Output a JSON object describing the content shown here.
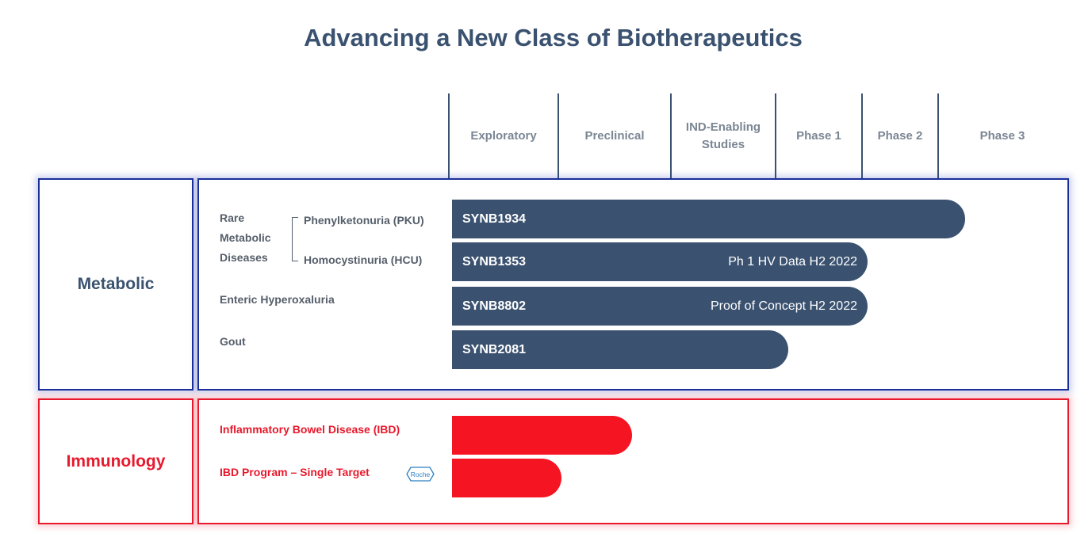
{
  "title": "Advancing a New Class of Biotherapeutics",
  "colors": {
    "navy": "#3a5270",
    "red": "#f51422",
    "metabolic_border": "#1a2e9a",
    "immunology_border": "#e8192c",
    "header_text": "#7b8694"
  },
  "chart_data": {
    "type": "bar",
    "orientation": "horizontal",
    "title": "Advancing a New Class of Biotherapeutics",
    "stages": [
      "Exploratory",
      "Preclinical",
      "IND-Enabling\nStudies",
      "Phase 1",
      "Phase 2",
      "Phase 3"
    ],
    "groups": [
      {
        "name": "Metabolic",
        "rows": [
          {
            "group_label": "Rare Metabolic Diseases",
            "indication": "Phenylketonuria (PKU)",
            "program": "SYNB1934",
            "note": "",
            "progress_stage": 5.3
          },
          {
            "group_label": "Rare Metabolic Diseases",
            "indication": "Homocystinuria (HCU)",
            "program": "SYNB1353",
            "note": "Ph 1 HV Data H2 2022",
            "progress_stage": 4.3
          },
          {
            "indication": "Enteric Hyperoxaluria",
            "program": "SYNB8802",
            "note": "Proof of Concept H2 2022",
            "progress_stage": 4.3
          },
          {
            "indication": "Gout",
            "program": "SYNB2081",
            "note": "",
            "progress_stage": 3.1
          }
        ]
      },
      {
        "name": "Immunology",
        "rows": [
          {
            "indication": "Inflammatory Bowel Disease (IBD)",
            "program": "",
            "note": "",
            "progress_stage": 1.65
          },
          {
            "indication": "IBD Program – Single Target",
            "program": "",
            "note": "",
            "partner_logo": "Roche",
            "progress_stage": 1.0
          }
        ]
      }
    ]
  },
  "metabolic": {
    "category": "Metabolic",
    "rare_label": "Rare\nMetabolic\nDiseases",
    "pku": "Phenylketonuria (PKU)",
    "hcu": "Homocystinuria (HCU)",
    "eh": "Enteric Hyperoxaluria",
    "gout": "Gout"
  },
  "immunology": {
    "category": "Immunology",
    "ibd": "Inflammatory Bowel Disease (IBD)",
    "ibd_single": "IBD Program – Single Target",
    "partner_logo": "Roche"
  }
}
